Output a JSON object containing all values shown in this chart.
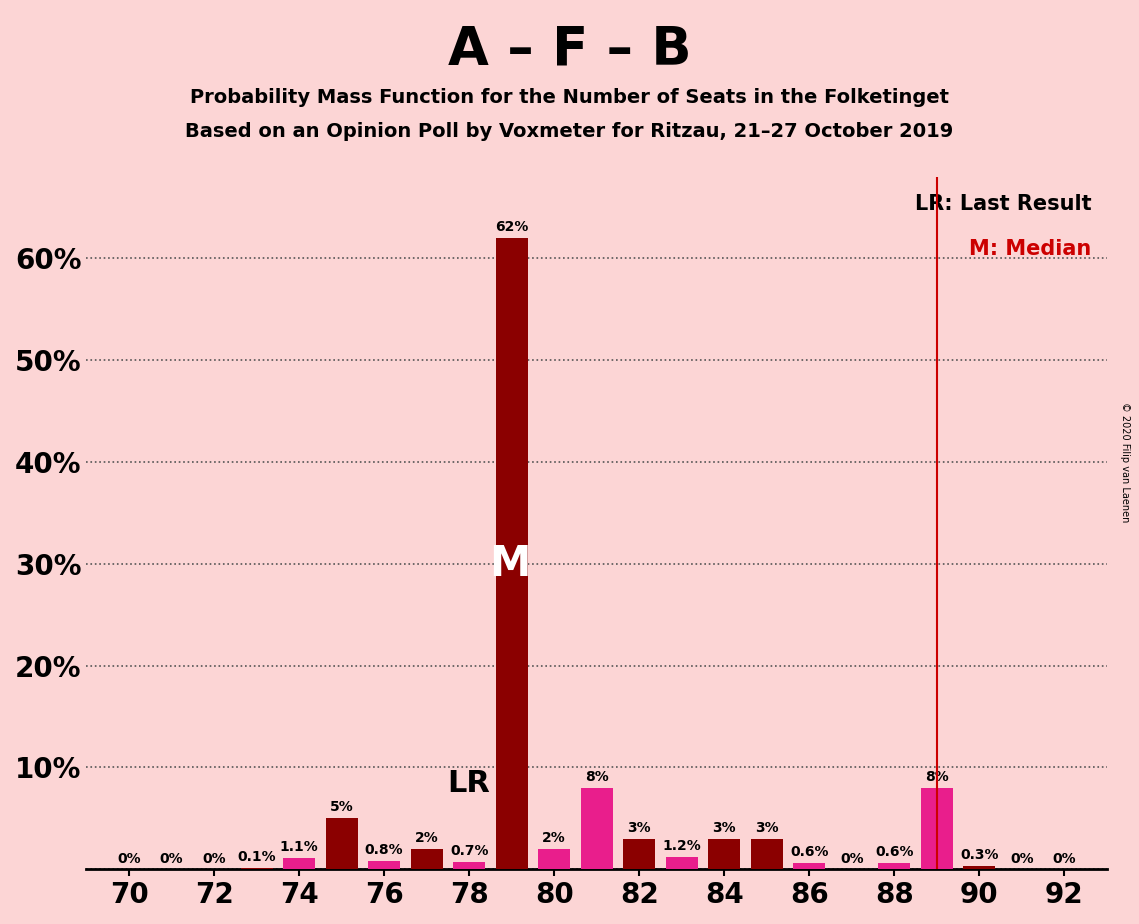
{
  "title": "A – F – B",
  "subtitle1": "Probability Mass Function for the Number of Seats in the Folketinget",
  "subtitle2": "Based on an Opinion Poll by Voxmeter for Ritzau, 21–27 October 2019",
  "background_color": "#fcd5d5",
  "lr_line_color": "#cc0000",
  "copyright": "© 2020 Filip van Laenen",
  "seats": [
    70,
    71,
    72,
    73,
    74,
    75,
    76,
    77,
    78,
    79,
    80,
    81,
    82,
    83,
    84,
    85,
    86,
    87,
    88,
    89,
    90,
    91,
    92
  ],
  "values": [
    0.0,
    0.0,
    0.0,
    0.1,
    1.1,
    5.0,
    0.8,
    2.0,
    0.7,
    62.0,
    2.0,
    8.0,
    3.0,
    1.2,
    3.0,
    3.0,
    0.6,
    0.0,
    0.6,
    8.0,
    0.3,
    0.0,
    0.0
  ],
  "labels": [
    "0%",
    "0%",
    "0%",
    "0.1%",
    "1.1%",
    "5%",
    "0.8%",
    "2%",
    "0.7%",
    "62%",
    "2%",
    "8%",
    "3%",
    "1.2%",
    "3%",
    "3%",
    "0.6%",
    "0%",
    "0.6%",
    "8%",
    "0.3%",
    "0%",
    "0%"
  ],
  "colors": [
    "#e91e8c",
    "#8b0000",
    "#e91e8c",
    "#8b0000",
    "#e91e8c",
    "#8b0000",
    "#e91e8c",
    "#8b0000",
    "#e91e8c",
    "#8b0000",
    "#e91e8c",
    "#e91e8c",
    "#8b0000",
    "#e91e8c",
    "#8b0000",
    "#8b0000",
    "#e91e8c",
    "#8b0000",
    "#e91e8c",
    "#e91e8c",
    "#8b0000",
    "#e91e8c",
    "#8b0000"
  ],
  "median_seat": 79,
  "lr_seat": 89,
  "ylim_max": 68,
  "yticks": [
    0,
    10,
    20,
    30,
    40,
    50,
    60
  ],
  "ytick_labels": [
    "",
    "10%",
    "20%",
    "30%",
    "40%",
    "50%",
    "60%"
  ],
  "xtick_seats": [
    70,
    72,
    74,
    76,
    78,
    80,
    82,
    84,
    86,
    88,
    90,
    92
  ]
}
